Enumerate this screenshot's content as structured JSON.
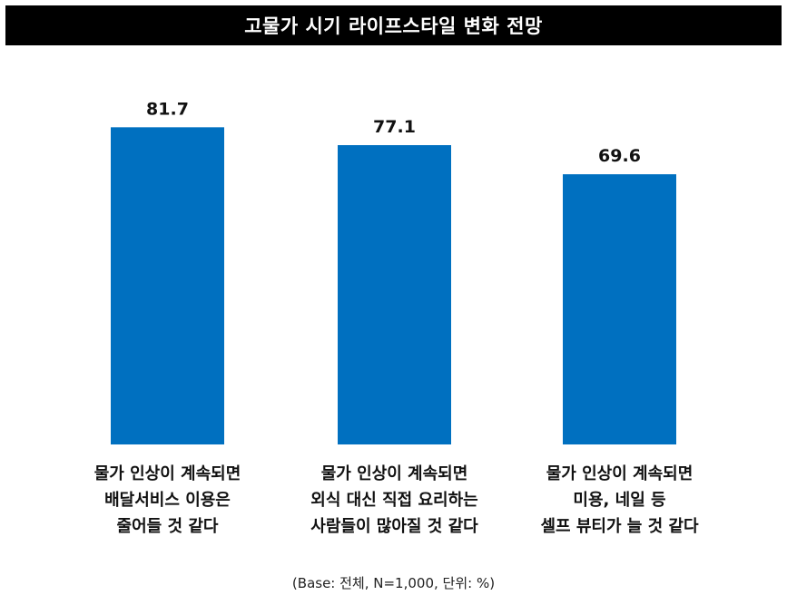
{
  "chart_data": {
    "type": "bar",
    "title": "고물가 시기 라이프스타일 변화 전망",
    "categories": [
      [
        "물가 인상이 계속되면",
        "배달서비스 이용은",
        "줄어들 것 같다"
      ],
      [
        "물가 인상이 계속되면",
        "외식 대신 직접 요리하는",
        "사람들이 많아질 것 같다"
      ],
      [
        "물가 인상이 계속되면",
        "미용, 네일 등",
        "셀프 뷰티가 늘 것 같다"
      ]
    ],
    "values": [
      81.7,
      77.1,
      69.6
    ],
    "value_labels": [
      "81.7",
      "77.1",
      "69.6"
    ],
    "ylim": [
      0,
      100
    ],
    "xlabel": "",
    "ylabel": "",
    "grid": false,
    "bar_color": "#0070C0",
    "footnote": "(Base: 전체, N=1,000, 단위: %)"
  }
}
